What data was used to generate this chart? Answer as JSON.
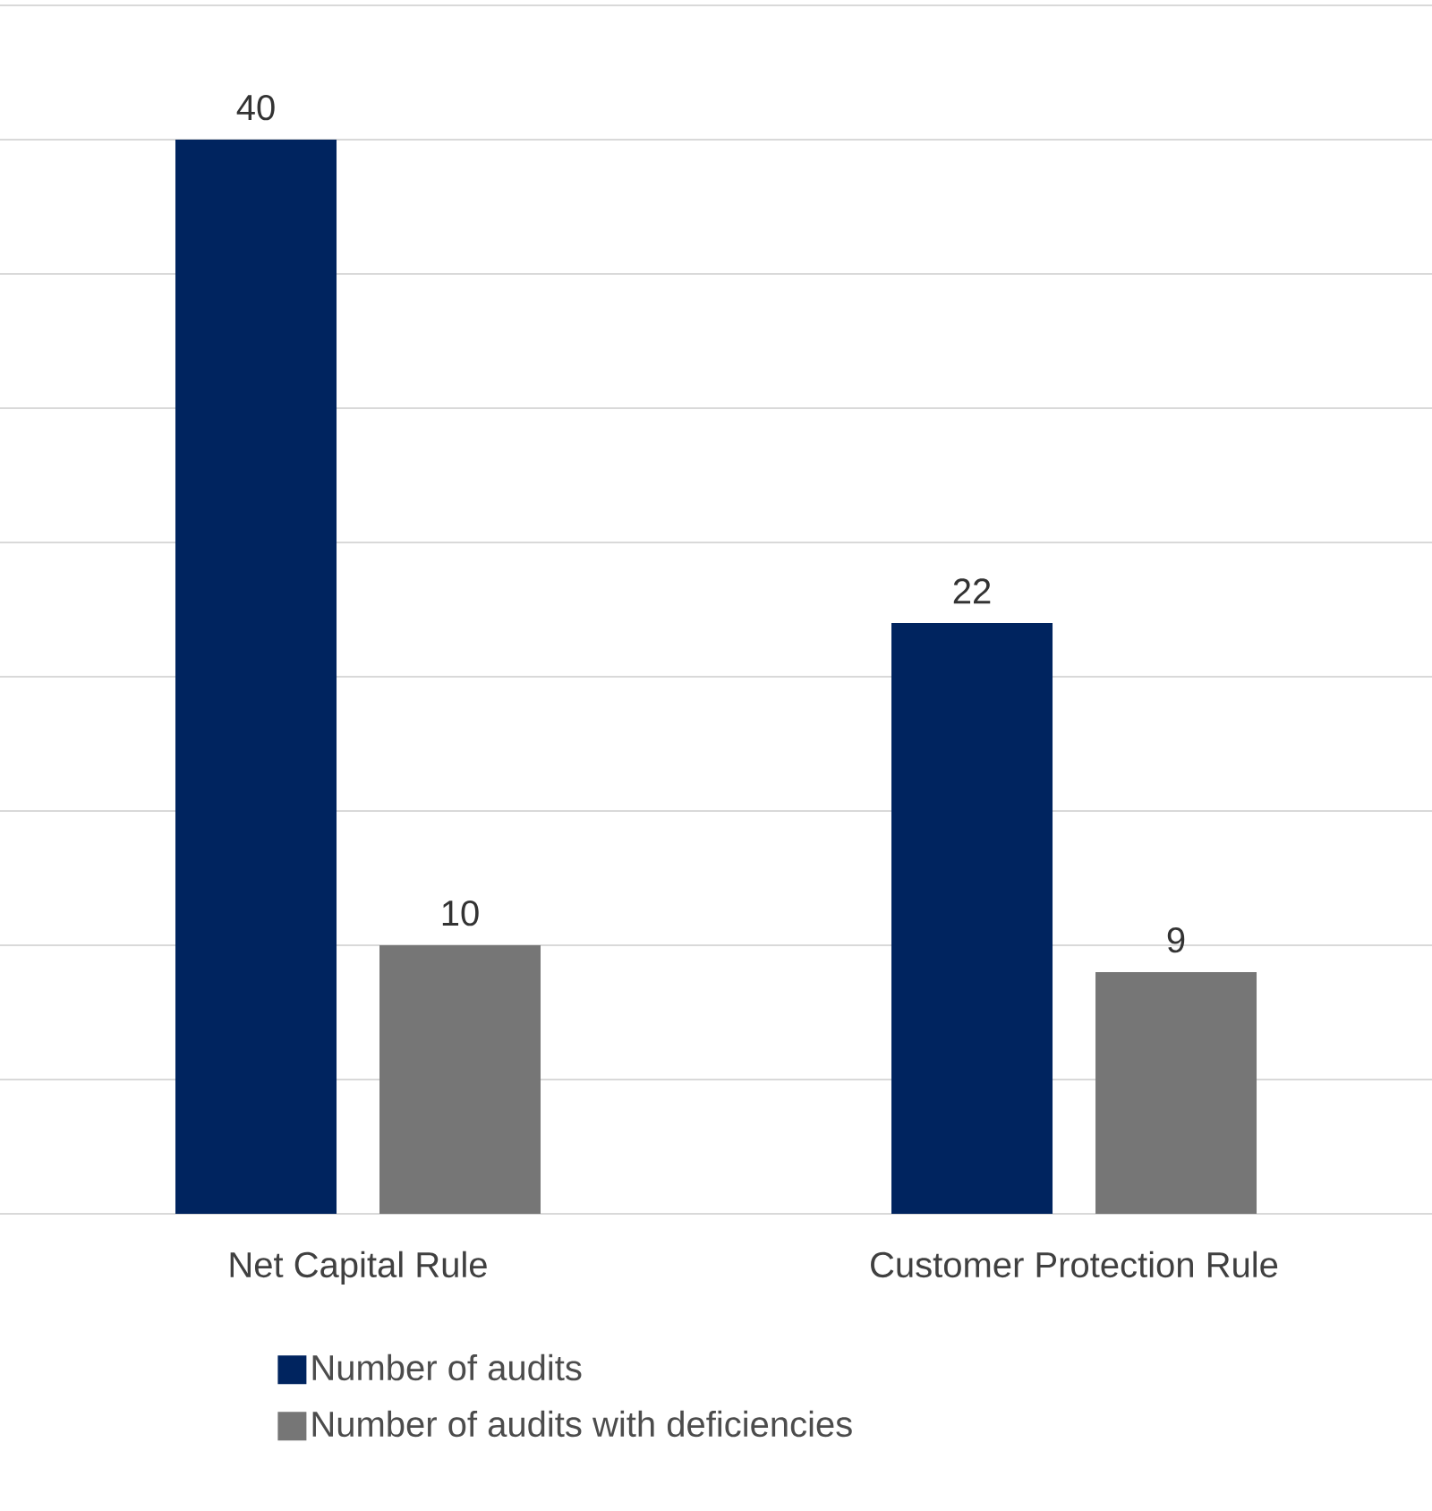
{
  "chart_data": {
    "type": "bar",
    "categories": [
      "Net Capital Rule",
      "Customer Protection Rule"
    ],
    "series": [
      {
        "name": "Number of audits",
        "color": "#00245f",
        "values": [
          40,
          22
        ]
      },
      {
        "name": "Number of audits with deficiencies",
        "color": "#767676",
        "values": [
          10,
          9
        ]
      }
    ],
    "ylim": [
      0,
      45
    ],
    "yticks": [
      {
        "value": 0,
        "label": null
      },
      {
        "value": 5,
        "label": null
      },
      {
        "value": 10,
        "label": null
      },
      {
        "value": 15,
        "label": null
      },
      {
        "value": 20,
        "label": null
      },
      {
        "value": 25,
        "label": null
      },
      {
        "value": 30,
        "label": null
      },
      {
        "value": 35,
        "label": null
      },
      {
        "value": 40,
        "label": null
      },
      {
        "value": 45,
        "label": null
      }
    ],
    "tick_labels": "x",
    "grid": "y",
    "data_labels": true,
    "legend": "bottom"
  }
}
